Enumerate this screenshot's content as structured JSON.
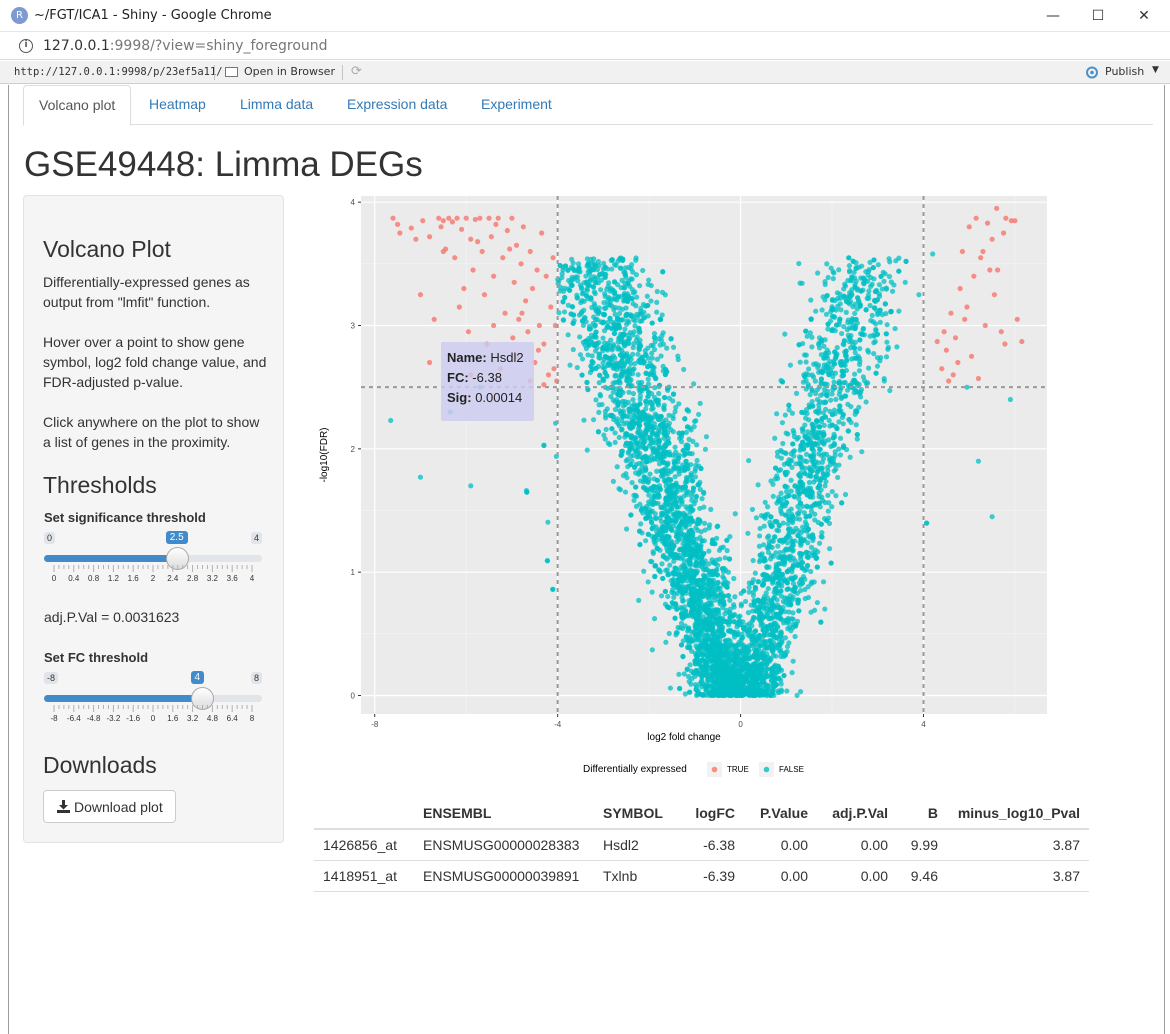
{
  "window": {
    "title": "~/FGT/ICA1 - Shiny - Google Chrome",
    "app_icon_letter": "R",
    "minimize": "—",
    "maximize": "☐",
    "close": "✕"
  },
  "browser": {
    "url_host": "127.0.0.1",
    "url_rest": ":9998/?view=shiny_foreground"
  },
  "rstudio_toolbar": {
    "url": "http://127.0.0.1:9998/p/23ef5a11/",
    "open_in_browser": "Open in Browser",
    "publish": "Publish"
  },
  "tabs": [
    {
      "label": "Volcano plot",
      "active": true
    },
    {
      "label": "Heatmap",
      "active": false
    },
    {
      "label": "Limma data",
      "active": false
    },
    {
      "label": "Expression data",
      "active": false
    },
    {
      "label": "Experiment",
      "active": false
    }
  ],
  "page_title": "GSE49448: Limma DEGs",
  "sidebar": {
    "volcano_heading": "Volcano Plot",
    "desc1": "Differentially-expressed genes as output from \"lmfit\" function.",
    "desc2": "Hover over a point to show gene symbol, log2 fold change value, and FDR-adjusted p-value.",
    "desc3": "Click anywhere on the plot to show a list of genes in the proximity.",
    "thresholds_heading": "Thresholds",
    "sig_slider": {
      "label": "Set significance threshold",
      "min": "0",
      "max": "4",
      "value": "2.5",
      "value_num": 2.5,
      "min_num": 0,
      "max_num": 4,
      "ticks": [
        "0",
        "0.4",
        "0.8",
        "1.2",
        "1.6",
        "2",
        "2.4",
        "2.8",
        "3.2",
        "3.6",
        "4"
      ]
    },
    "adj_pval_text": "adj.P.Val = 0.0031623",
    "fc_slider": {
      "label": "Set FC threshold",
      "min": "-8",
      "max": "8",
      "value": "4",
      "value_num": 4,
      "min_num": -8,
      "max_num": 8,
      "ticks": [
        "-8",
        "-6.4",
        "-4.8",
        "-3.2",
        "-1.6",
        "0",
        "1.6",
        "3.2",
        "4.8",
        "6.4",
        "8"
      ]
    },
    "downloads_heading": "Downloads",
    "download_button": "Download plot"
  },
  "tooltip": {
    "name_label": "Name:",
    "name": "Hsdl2",
    "fc_label": "FC:",
    "fc": "-6.38",
    "sig_label": "Sig:",
    "sig": "0.00014"
  },
  "chart_data": {
    "type": "scatter",
    "title": "",
    "xlabel": "log2 fold change",
    "ylabel": "-log10(FDR)",
    "xlim": [
      -8.3,
      6.7
    ],
    "ylim": [
      -0.15,
      4.05
    ],
    "x_ticks": [
      "-8",
      "-4",
      "0",
      "4"
    ],
    "x_tick_values": [
      -8,
      -4,
      0,
      4
    ],
    "y_ticks": [
      "0",
      "1",
      "2",
      "3",
      "4"
    ],
    "y_tick_values": [
      0,
      1,
      2,
      3,
      4
    ],
    "grid": true,
    "thresholds": {
      "fc": 4,
      "significance": 2.5
    },
    "legend": {
      "title": "Differentially expressed",
      "position": "bottom",
      "entries": [
        {
          "label": "TRUE",
          "color": "#f8766d"
        },
        {
          "label": "FALSE",
          "color": "#00bfc4"
        }
      ]
    },
    "series": [
      {
        "name": "TRUE",
        "color": "#f8766d",
        "points": [
          [
            -7.6,
            3.87
          ],
          [
            -7.5,
            3.82
          ],
          [
            -7.45,
            3.75
          ],
          [
            -7.2,
            3.79
          ],
          [
            -7.1,
            3.7
          ],
          [
            -6.95,
            3.85
          ],
          [
            -6.8,
            3.72
          ],
          [
            -6.6,
            3.87
          ],
          [
            -6.55,
            3.8
          ],
          [
            -6.5,
            3.85
          ],
          [
            -6.45,
            3.62
          ],
          [
            -6.38,
            3.87
          ],
          [
            -6.3,
            3.84
          ],
          [
            -6.25,
            3.55
          ],
          [
            -6.2,
            3.87
          ],
          [
            -6.1,
            3.78
          ],
          [
            -6.05,
            3.3
          ],
          [
            -6.0,
            3.87
          ],
          [
            -5.9,
            3.7
          ],
          [
            -5.85,
            3.45
          ],
          [
            -5.8,
            3.86
          ],
          [
            -5.7,
            3.87
          ],
          [
            -5.65,
            3.6
          ],
          [
            -5.6,
            3.25
          ],
          [
            -5.5,
            3.87
          ],
          [
            -5.45,
            3.72
          ],
          [
            -5.4,
            3.4
          ],
          [
            -5.35,
            3.82
          ],
          [
            -5.3,
            3.87
          ],
          [
            -5.2,
            3.55
          ],
          [
            -5.15,
            3.1
          ],
          [
            -5.1,
            3.77
          ],
          [
            -5.0,
            3.87
          ],
          [
            -4.95,
            3.35
          ],
          [
            -4.9,
            3.65
          ],
          [
            -4.85,
            3.05
          ],
          [
            -4.8,
            3.5
          ],
          [
            -4.75,
            3.8
          ],
          [
            -4.7,
            3.2
          ],
          [
            -4.65,
            2.95
          ],
          [
            -4.6,
            3.6
          ],
          [
            -4.55,
            3.3
          ],
          [
            -4.5,
            2.7
          ],
          [
            -4.45,
            3.45
          ],
          [
            -4.4,
            3.0
          ],
          [
            -4.35,
            3.75
          ],
          [
            -4.3,
            2.85
          ],
          [
            -4.25,
            3.4
          ],
          [
            -4.2,
            2.6
          ],
          [
            -4.15,
            3.15
          ],
          [
            -4.1,
            3.55
          ],
          [
            -4.08,
            2.65
          ],
          [
            -4.05,
            3.0
          ],
          [
            -4.02,
            2.55
          ],
          [
            -7.0,
            3.25
          ],
          [
            -6.7,
            3.05
          ],
          [
            -6.15,
            3.15
          ],
          [
            -6.8,
            2.7
          ],
          [
            -5.95,
            2.95
          ],
          [
            -5.55,
            2.85
          ],
          [
            -5.25,
            2.65
          ],
          [
            -4.9,
            2.75
          ],
          [
            -4.6,
            2.55
          ],
          [
            -5.9,
            2.6
          ],
          [
            -4.3,
            2.52
          ],
          [
            -6.5,
            3.6
          ],
          [
            -5.75,
            3.68
          ],
          [
            -5.05,
            3.62
          ],
          [
            -4.78,
            3.1
          ],
          [
            -5.4,
            3.0
          ],
          [
            -4.98,
            2.9
          ],
          [
            -4.42,
            2.8
          ],
          [
            4.3,
            2.87
          ],
          [
            4.4,
            2.65
          ],
          [
            4.5,
            2.8
          ],
          [
            4.55,
            2.55
          ],
          [
            4.6,
            3.1
          ],
          [
            4.7,
            2.9
          ],
          [
            4.75,
            2.7
          ],
          [
            4.8,
            3.3
          ],
          [
            4.85,
            3.6
          ],
          [
            4.9,
            3.05
          ],
          [
            5.0,
            3.8
          ],
          [
            5.05,
            2.75
          ],
          [
            5.1,
            3.4
          ],
          [
            5.15,
            3.87
          ],
          [
            5.2,
            2.57
          ],
          [
            5.3,
            3.6
          ],
          [
            5.35,
            3.0
          ],
          [
            5.4,
            3.83
          ],
          [
            5.5,
            3.7
          ],
          [
            5.6,
            3.95
          ],
          [
            5.7,
            2.95
          ],
          [
            5.75,
            3.75
          ],
          [
            5.8,
            3.87
          ],
          [
            6.0,
            3.85
          ],
          [
            5.62,
            3.45
          ],
          [
            6.15,
            2.87
          ],
          [
            5.78,
            2.85
          ],
          [
            5.55,
            3.25
          ],
          [
            4.65,
            2.6
          ],
          [
            4.45,
            2.95
          ],
          [
            5.25,
            3.55
          ],
          [
            5.92,
            3.85
          ],
          [
            4.95,
            3.15
          ],
          [
            6.05,
            3.05
          ],
          [
            5.45,
            3.45
          ]
        ]
      },
      {
        "name": "FALSE",
        "color": "#00bfc4",
        "points": []
      }
    ],
    "highlighted_point": {
      "label": "Hsdl2",
      "x": -6.38,
      "y": 3.87
    }
  },
  "table": {
    "headers": [
      "",
      "ENSEMBL",
      "SYMBOL",
      "logFC",
      "P.Value",
      "adj.P.Val",
      "B",
      "minus_log10_Pval"
    ],
    "rows": [
      [
        "1426856_at",
        "ENSMUSG00000028383",
        "Hsdl2",
        "-6.38",
        "0.00",
        "0.00",
        "9.99",
        "3.87"
      ],
      [
        "1418951_at",
        "ENSMUSG00000039891",
        "Txlnb",
        "-6.39",
        "0.00",
        "0.00",
        "9.46",
        "3.87"
      ]
    ]
  }
}
